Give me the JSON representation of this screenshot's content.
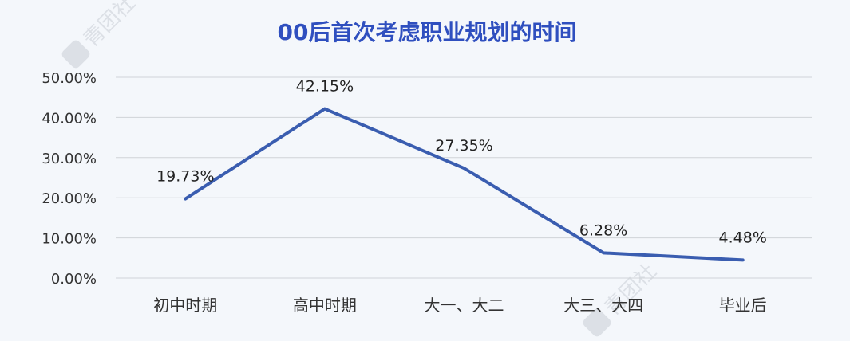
{
  "chart_data": {
    "type": "line",
    "title": "00后首次考虑职业规划的时间",
    "categories": [
      "初中时期",
      "高中时期",
      "大一、大二",
      "大三、大四",
      "毕业后"
    ],
    "series": [
      {
        "values": [
          19.73,
          42.15,
          27.35,
          6.28,
          4.48
        ]
      }
    ],
    "data_labels": [
      "19.73%",
      "42.15%",
      "27.35%",
      "6.28%",
      "4.48%"
    ],
    "yticks": [
      "0.00%",
      "10.00%",
      "20.00%",
      "30.00%",
      "40.00%",
      "50.00%"
    ],
    "ylim": [
      0,
      50
    ],
    "grid": true,
    "legend": "none"
  },
  "colors": {
    "line": "#3a5db0",
    "title": "#2f4fbf",
    "grid": "#d0d3d8"
  },
  "watermark": {
    "text": "青团社",
    "icon": "qing-badge-icon"
  }
}
